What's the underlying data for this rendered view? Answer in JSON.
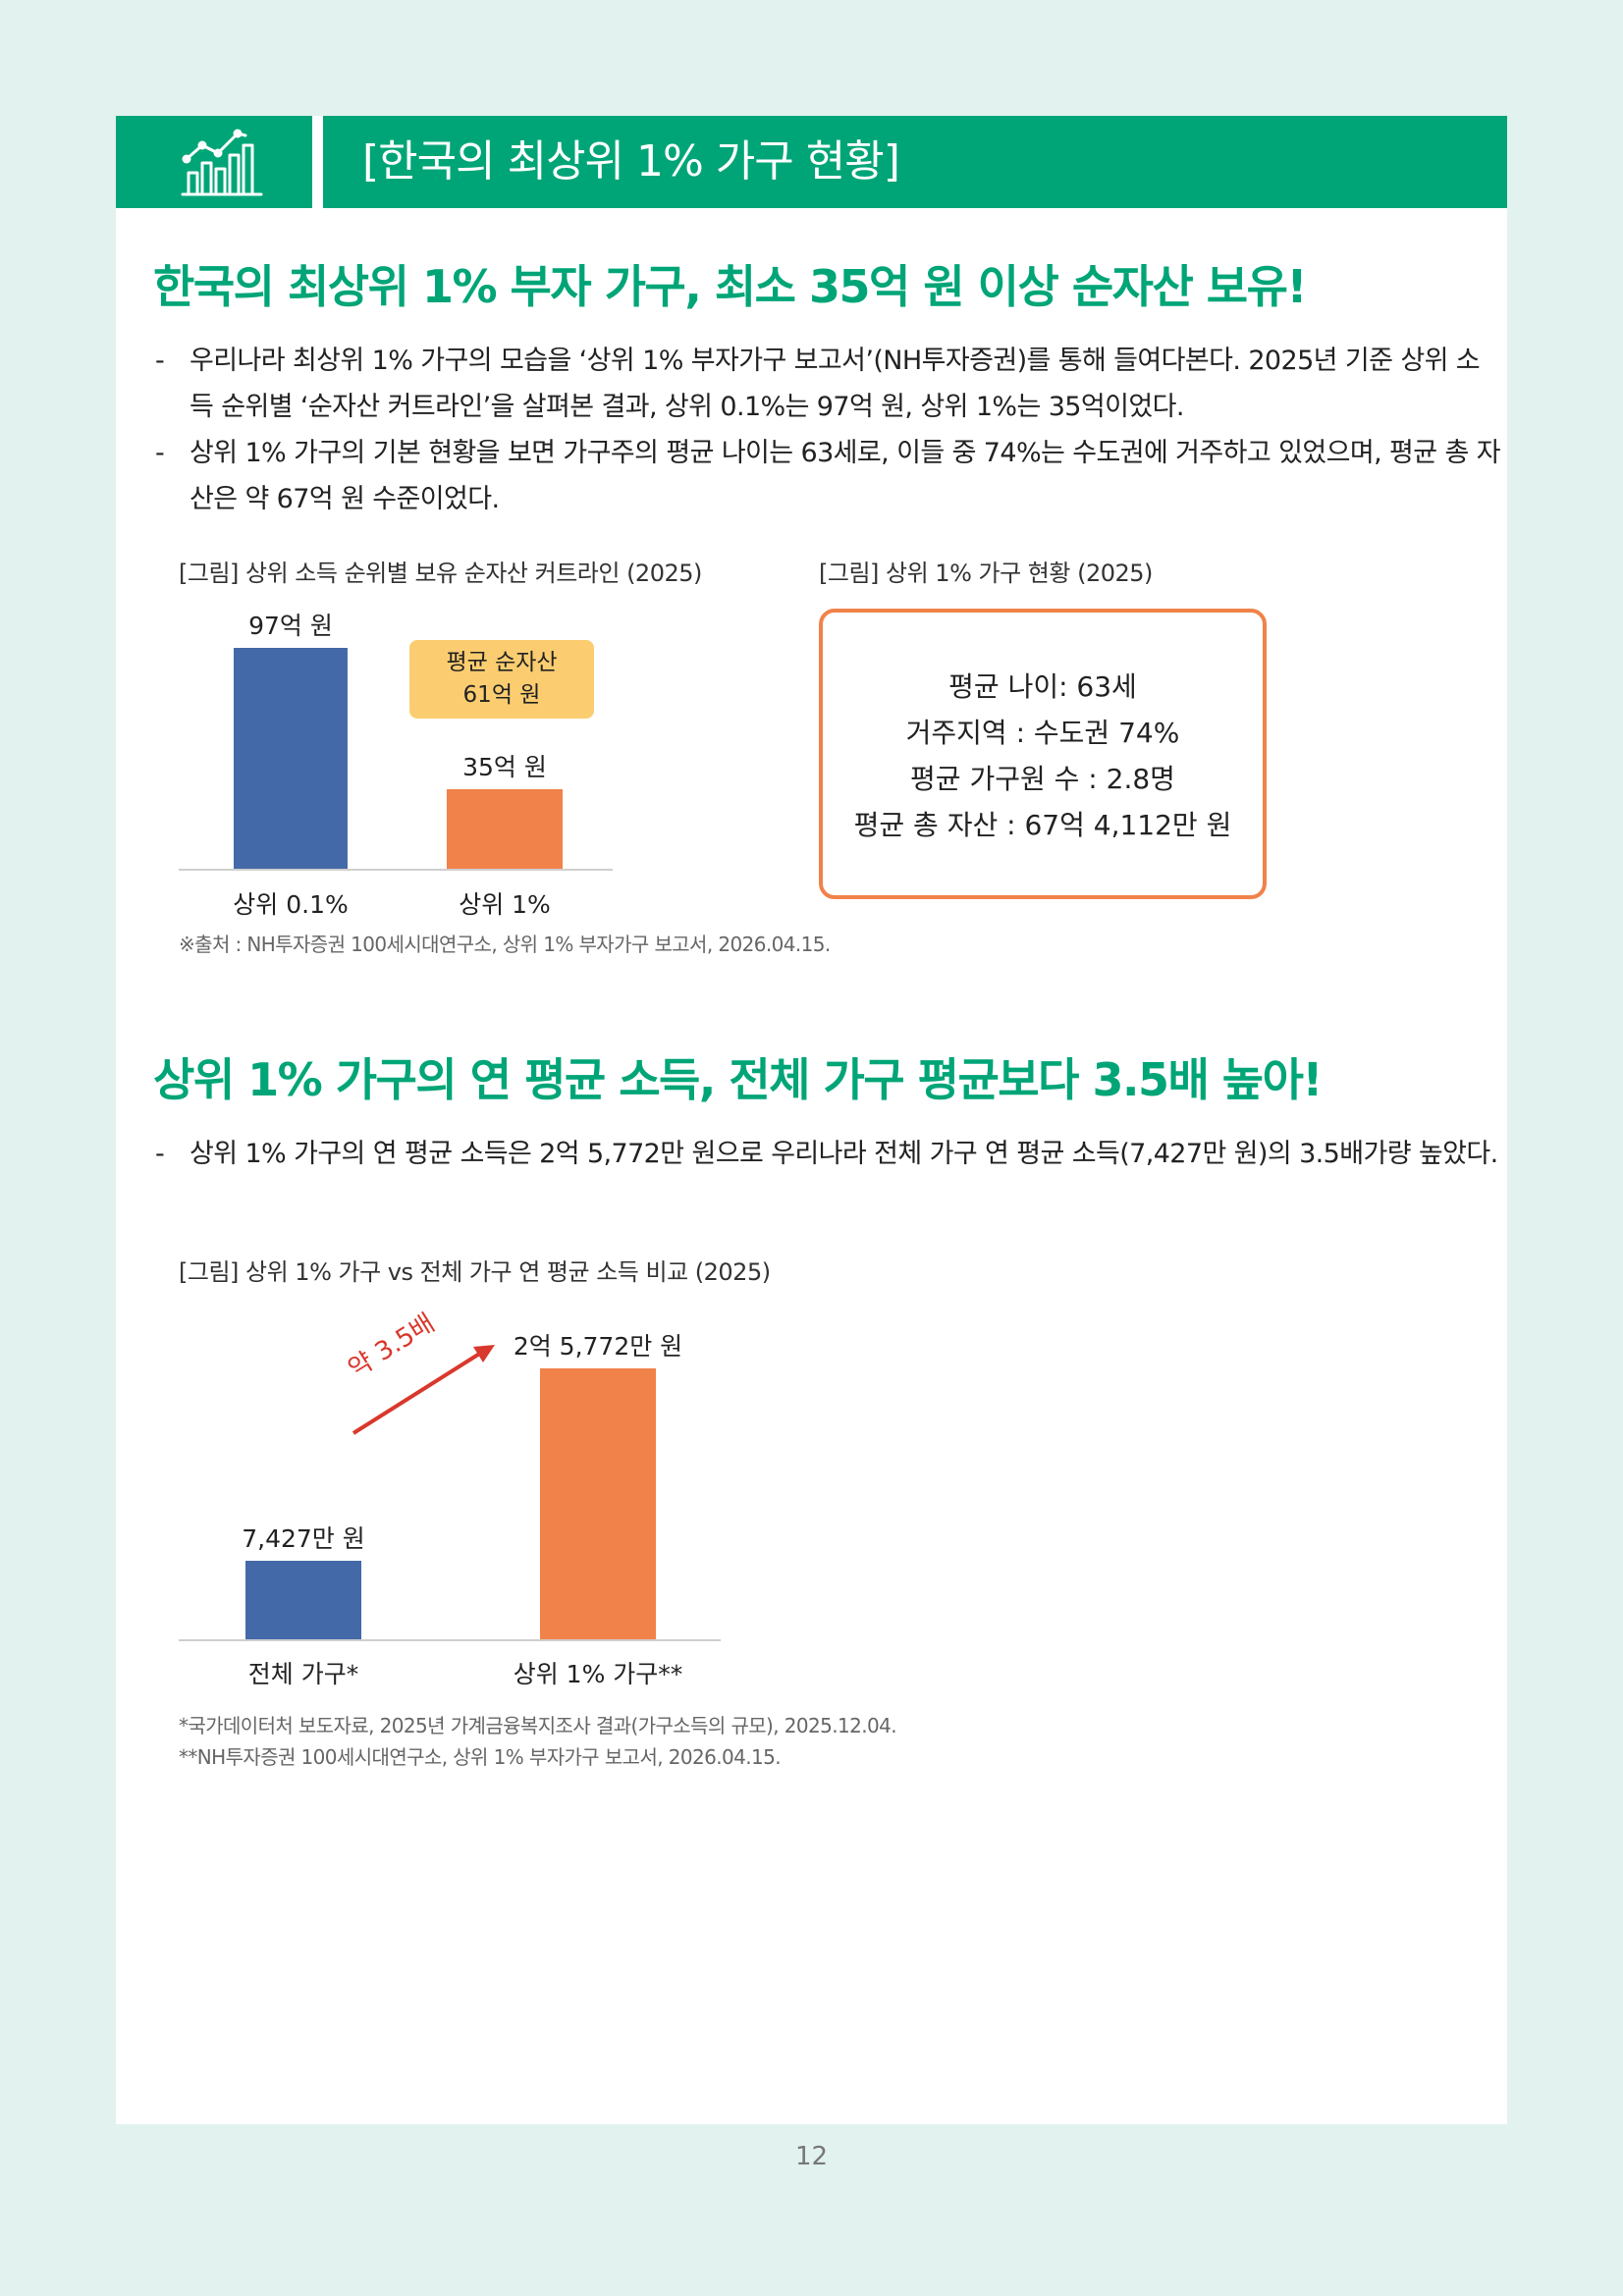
{
  "header": {
    "title": "[한국의 최상위 1% 가구 현황]",
    "icon": "chart-growth-icon"
  },
  "section1": {
    "headline": "한국의 최상위 1% 부자 가구, 최소 35억 원 이상 순자산 보유!",
    "bullets": [
      "우리나라 최상위 1% 가구의 모습을 ‘상위 1% 부자가구 보고서’(NH투자증권)를 통해 들여다본다. 2025년 기준 상위 소득 순위별 ‘순자산 커트라인’을 살펴본 결과, 상위 0.1%는 97억 원, 상위 1%는 35억이었다.",
      "상위 1% 가구의 기본 현황을 보면 가구주의 평균 나이는 63세로, 이들 중 74%는 수도권에 거주하고 있었으며, 평균 총 자산은 약 67억 원 수준이었다."
    ],
    "bullet_dash": "-",
    "chart1_caption": "[그림] 상위 소득 순위별 보유 순자산 커트라인 (2025)",
    "box_caption": "[그림] 상위 1% 가구 현황 (2025)",
    "avg_tag": [
      "평균 순자산",
      "61억 원"
    ],
    "info_lines": [
      "평균 나이: 63세",
      "거주지역 : 수도권 74%",
      "평균 가구원 수 : 2.8명",
      "평균 총 자산 : 67억 4,112만 원"
    ],
    "source": "※출처 : NH투자증권 100세시대연구소, 상위 1% 부자가구 보고서, 2026.04.15."
  },
  "section2": {
    "headline": "상위 1% 가구의 연 평균 소득, 전체 가구 평균보다 3.5배 높아!",
    "bullets": [
      "상위 1% 가구의 연 평균 소득은 2억 5,772만 원으로 우리나라 전체 가구 연 평균 소득(7,427만 원)의 3.5배가량 높았다."
    ],
    "chart2_caption": "[그림] 상위 1% 가구 vs 전체 가구 연 평균 소득 비교 (2025)",
    "arrow_label": "약 3.5배",
    "sources": [
      "*국가데이터처 보도자료, 2025년 가계금융복지조사 결과(가구소득의 규모), 2025.12.04.",
      "**NH투자증권 100세시대연구소, 상위 1% 부자가구 보고서, 2026.04.15."
    ]
  },
  "chart_data": [
    {
      "type": "bar",
      "categories": [
        "상위 0.1%",
        "상위 1%"
      ],
      "values": [
        97,
        35
      ],
      "value_labels": [
        "97억 원",
        "35억 원"
      ],
      "unit": "억 원",
      "colors": [
        "#4469a8",
        "#f0824a"
      ],
      "title": "[그림] 상위 소득 순위별 보유 순자산 커트라인 (2025)"
    },
    {
      "type": "bar",
      "categories": [
        "전체 가구*",
        "상위 1% 가구**"
      ],
      "values": [
        7427,
        25772
      ],
      "value_labels": [
        "7,427만 원",
        "2억 5,772만 원"
      ],
      "unit": "만 원",
      "colors": [
        "#4469a8",
        "#f0824a"
      ],
      "title": "[그림] 상위 1% 가구 vs 전체 가구 연 평균 소득 비교 (2025)"
    }
  ],
  "page_number": "12",
  "colors": {
    "brand_green": "#00a577",
    "bar_blue": "#4469a8",
    "bar_orange": "#f0824a",
    "tag_yellow": "#fbcd70",
    "arrow_red": "#d9382c"
  }
}
